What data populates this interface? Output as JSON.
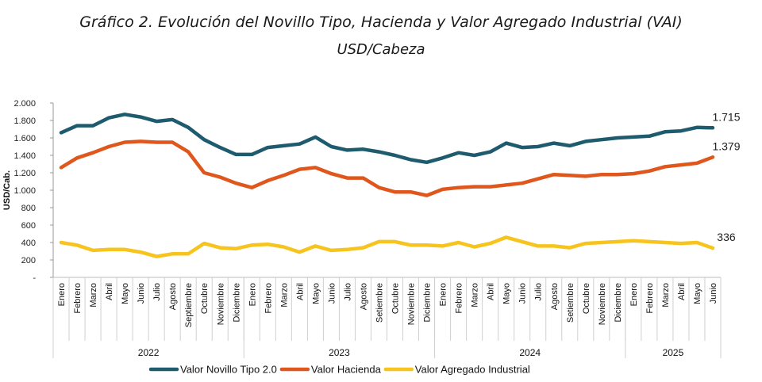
{
  "chart_data": {
    "type": "line",
    "title": "Gráfico 2. Evolución del Novillo Tipo, Hacienda y Valor Agregado Industrial (VAI)",
    "subtitle": "USD/Cabeza",
    "ylabel": "USD/Cab.",
    "ylim": [
      0,
      2000
    ],
    "y_ticks": [
      "-",
      "200",
      "400",
      "600",
      "800",
      "1.000",
      "1.200",
      "1.400",
      "1.600",
      "1.800",
      "2.000"
    ],
    "grid": false,
    "legend_position": "bottom",
    "years": [
      {
        "label": "2022",
        "months": 12
      },
      {
        "label": "2023",
        "months": 12
      },
      {
        "label": "2024",
        "months": 12
      },
      {
        "label": "2025",
        "months": 6
      }
    ],
    "categories": [
      "Enero",
      "Febrero",
      "Marzo",
      "Abril",
      "Mayo",
      "Junio",
      "Julio",
      "Agosto",
      "Septiembre",
      "Octubre",
      "Noviembre",
      "Diciembre",
      "Enero",
      "Febrero",
      "Marzo",
      "Abril",
      "Mayo",
      "Junio",
      "Julio",
      "Agosto",
      "Setiembre",
      "Octubre",
      "Noviembre",
      "Diciembre",
      "Enero",
      "Febrero",
      "Marzo",
      "Abril",
      "Mayo",
      "Junio",
      "Julio",
      "Agosto",
      "Setiembre",
      "Octubre",
      "Noviembre",
      "Diciembre",
      "Enero",
      "Febrero",
      "Marzo",
      "Abril",
      "Mayo",
      "Junio"
    ],
    "series": [
      {
        "name": "Valor Novillo Tipo 2.0",
        "color": "#1f5b6e",
        "end_label": "1.715",
        "values": [
          1660,
          1740,
          1740,
          1830,
          1870,
          1840,
          1790,
          1810,
          1720,
          1580,
          1490,
          1410,
          1410,
          1490,
          1510,
          1530,
          1610,
          1500,
          1460,
          1470,
          1440,
          1400,
          1350,
          1320,
          1370,
          1430,
          1400,
          1440,
          1540,
          1490,
          1500,
          1540,
          1510,
          1560,
          1580,
          1600,
          1610,
          1620,
          1670,
          1680,
          1720,
          1715
        ]
      },
      {
        "name": "Valor Hacienda",
        "color": "#e0571e",
        "end_label": "1.379",
        "values": [
          1260,
          1370,
          1430,
          1500,
          1550,
          1560,
          1550,
          1550,
          1440,
          1200,
          1150,
          1080,
          1030,
          1110,
          1170,
          1240,
          1260,
          1190,
          1140,
          1140,
          1030,
          980,
          980,
          940,
          1010,
          1030,
          1040,
          1040,
          1060,
          1080,
          1130,
          1180,
          1170,
          1160,
          1180,
          1180,
          1190,
          1220,
          1270,
          1290,
          1310,
          1379
        ]
      },
      {
        "name": "Valor Agregado Industrial",
        "color": "#f7c41d",
        "end_label": "336",
        "values": [
          400,
          370,
          310,
          320,
          320,
          290,
          240,
          270,
          270,
          390,
          340,
          330,
          370,
          380,
          350,
          290,
          360,
          310,
          320,
          340,
          410,
          410,
          370,
          370,
          360,
          400,
          350,
          390,
          460,
          410,
          360,
          360,
          340,
          390,
          400,
          410,
          420,
          410,
          400,
          390,
          400,
          336
        ]
      }
    ]
  }
}
